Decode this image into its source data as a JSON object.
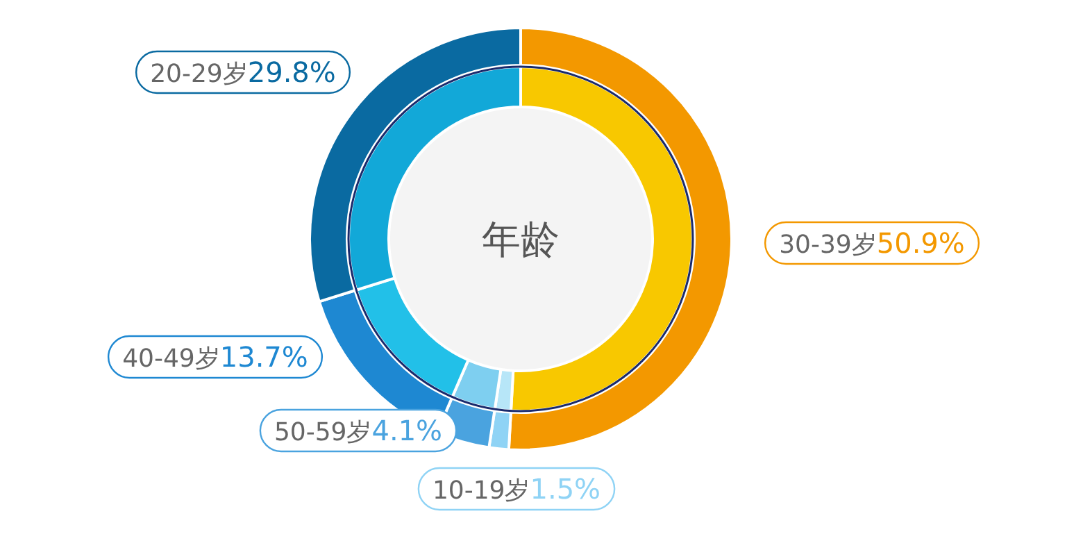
{
  "chart_data": {
    "type": "donut",
    "title": "年龄",
    "categories": [
      "30-39岁",
      "10-19岁",
      "50-59岁",
      "40-49岁",
      "20-29岁"
    ],
    "series": [
      {
        "values": [
          50.9,
          1.5,
          4.1,
          13.7,
          29.8
        ],
        "value_labels": [
          "50.9%",
          "1.5%",
          "4.1%",
          "13.7%",
          "29.8%"
        ],
        "colors": [
          "#f39800",
          "#8fd3f5",
          "#4aa3df",
          "#1e88d2",
          "#0a6aa1"
        ]
      },
      {
        "values": [
          50.9,
          1.5,
          4.1,
          13.7,
          29.8
        ],
        "colors": [
          "#f8c800",
          "#b7e6f8",
          "#7ecff0",
          "#22c0e8",
          "#12a8d8"
        ]
      }
    ]
  }
}
